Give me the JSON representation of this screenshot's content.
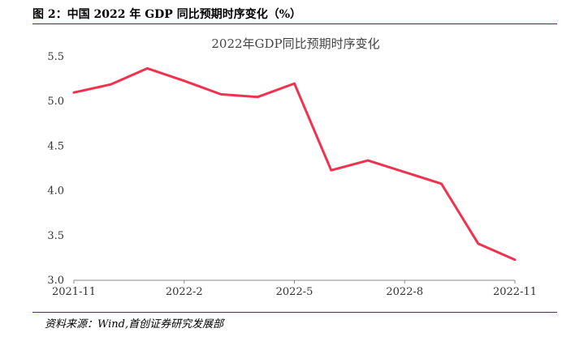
{
  "figure": {
    "title": "图 2：中国 2022 年 GDP 同比预期时序变化（%）",
    "source": "资料来源：Wind,首创证券研究发展部"
  },
  "chart_data": {
    "type": "line",
    "title": "2022年GDP同比预期时序变化",
    "xlabel": "",
    "ylabel": "",
    "x_ticks": [
      "2021-11",
      "2022-2",
      "2022-5",
      "2022-8",
      "2022-11"
    ],
    "y_ticks": [
      "3.0",
      "3.5",
      "4.0",
      "4.5",
      "5.0",
      "5.5"
    ],
    "ylim": [
      3.0,
      5.5
    ],
    "grid": false,
    "legend": "none",
    "series": [
      {
        "color": "#f0324f",
        "x": [
          "2021-11",
          "2021-12",
          "2022-1",
          "2022-2",
          "2022-3",
          "2022-4",
          "2022-5",
          "2022-6",
          "2022-7",
          "2022-8",
          "2022-9",
          "2022-10",
          "2022-11"
        ],
        "values": [
          5.1,
          5.19,
          5.37,
          5.23,
          5.08,
          5.05,
          5.2,
          4.23,
          4.34,
          4.21,
          4.08,
          3.41,
          3.23
        ]
      }
    ]
  }
}
